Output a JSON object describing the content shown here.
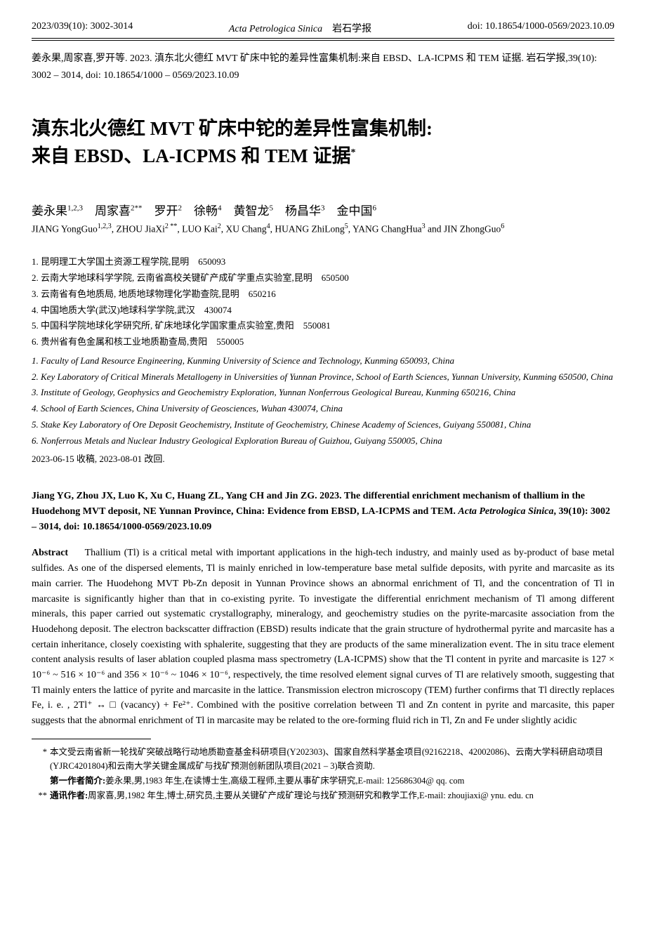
{
  "header": {
    "left": "2023/039(10): 3002-3014",
    "journal_en": "Acta Petrologica Sinica",
    "journal_cn": "岩石学报",
    "doi": "doi: 10.18654/1000-0569/2023.10.09"
  },
  "citation_cn": "姜永果,周家喜,罗开等. 2023. 滇东北火德红 MVT 矿床中铊的差异性富集机制:来自 EBSD、LA-ICPMS 和 TEM 证据. 岩石学报,39(10): 3002 – 3014, doi: 10.18654/1000 – 0569/2023.10.09",
  "title_cn_line1": "滇东北火德红 MVT 矿床中铊的差异性富集机制:",
  "title_cn_line2": "来自 EBSD、LA-ICPMS 和 TEM 证据",
  "title_sup": "*",
  "authors_cn": [
    {
      "name": "姜永果",
      "sup": "1,2,3"
    },
    {
      "name": "周家喜",
      "sup": "2**"
    },
    {
      "name": "罗开",
      "sup": "2"
    },
    {
      "name": "徐畅",
      "sup": "4"
    },
    {
      "name": "黄智龙",
      "sup": "5"
    },
    {
      "name": "杨昌华",
      "sup": "3"
    },
    {
      "name": "金中国",
      "sup": "6"
    }
  ],
  "authors_en": "JIANG YongGuo<sup class=\"sup\">1,2,3</sup>, ZHOU JiaXi<sup class=\"sup\">2 **</sup>, LUO Kai<sup class=\"sup\">2</sup>, XU Chang<sup class=\"sup\">4</sup>, HUANG ZhiLong<sup class=\"sup\">5</sup>, YANG ChangHua<sup class=\"sup\">3</sup> and JIN ZhongGuo<sup class=\"sup\">6</sup>",
  "affiliations_cn": [
    "1. 昆明理工大学国土资源工程学院,昆明　650093",
    "2. 云南大学地球科学学院, 云南省高校关键矿产成矿学重点实验室,昆明　650500",
    "3. 云南省有色地质局, 地质地球物理化学勘查院,昆明　650216",
    "4. 中国地质大学(武汉)地球科学学院,武汉　430074",
    "5. 中国科学院地球化学研究所, 矿床地球化学国家重点实验室,贵阳　550081",
    "6. 贵州省有色金属和核工业地质勘查局,贵阳　550005"
  ],
  "affiliations_en": [
    "1. Faculty of Land Resource Engineering, Kunming University of Science and Technology, Kunming 650093, China",
    "2. Key Laboratory of Critical Minerals Metallogeny in Universities of Yunnan Province, School of Earth Sciences, Yunnan University, Kunming 650500, China",
    "3. Institute of Geology, Geophysics and Geochemistry Exploration, Yunnan Nonferrous Geological Bureau, Kunming 650216, China",
    "4. School of Earth Sciences, China University of Geosciences, Wuhan 430074, China",
    "5. Stake Key Laboratory of Ore Deposit Geochemistry, Institute of Geochemistry, Chinese Academy of Sciences, Guiyang 550081, China",
    "6. Nonferrous Metals and Nuclear Industry Geological Exploration Bureau of Guizhou, Guiyang 550005, China"
  ],
  "dates": "2023-06-15 收稿, 2023-08-01 改回.",
  "en_citation_text": "Jiang YG, Zhou JX, Luo K, Xu C, Huang ZL, Yang CH and Jin ZG. 2023. The differential enrichment mechanism of thallium in the Huodehong MVT deposit, NE Yunnan Province, China: Evidence from EBSD, LA-ICPMS and TEM.",
  "en_citation_journal": "Acta Petrologica Sinica",
  "en_citation_tail": ", 39(10): 3002 – 3014, doi: 10.18654/1000-0569/2023.10.09",
  "abstract_label": "Abstract",
  "abstract_text": "Thallium (Tl) is a critical metal with important applications in the high-tech industry, and mainly used as by-product of base metal sulfides. As one of the dispersed elements, Tl is mainly enriched in low-temperature base metal sulfide deposits, with pyrite and marcasite as its main carrier. The Huodehong MVT Pb-Zn deposit in Yunnan Province shows an abnormal enrichment of Tl, and the concentration of Tl in marcasite is significantly higher than that in co-existing pyrite. To investigate the differential enrichment mechanism of Tl among different minerals, this paper carried out systematic crystallography, mineralogy, and geochemistry studies on the pyrite-marcasite association from the Huodehong deposit. The electron backscatter diffraction (EBSD) results indicate that the grain structure of hydrothermal pyrite and marcasite has a certain inheritance, closely coexisting with sphalerite, suggesting that they are products of the same mineralization event. The in situ trace element content analysis results of laser ablation coupled plasma mass spectrometry (LA-ICPMS) show that the Tl content in pyrite and marcasite is 127 × 10⁻⁶ ~ 516 × 10⁻⁶ and 356 × 10⁻⁶ ~ 1046 × 10⁻⁶, respectively, the time resolved element signal curves of Tl are relatively smooth, suggesting that Tl mainly enters the lattice of pyrite and marcasite in the lattice. Transmission electron microscopy (TEM) further confirms that Tl directly replaces Fe, i. e. , 2Tl⁺ ↔ □ (vacancy) + Fe²⁺. Combined with the positive correlation between Tl and Zn content in pyrite and marcasite, this paper suggests that the abnormal enrichment of Tl in marcasite may be related to the ore-forming fluid rich in Tl, Zn and Fe under slightly acidic",
  "footnotes": {
    "f1_marker": "*",
    "f1_text": "本文受云南省新一轮找矿突破战略行动地质勘查基金科研项目(Y202303)、国家自然科学基金项目(92162218、42002086)、云南大学科研启动项目(YJRC4201804)和云南大学关键金属成矿与找矿预测创新团队项目(2021 – 3)联合资助.",
    "f2_label": "第一作者简介:",
    "f2_text": "姜永果,男,1983 年生,在读博士生,高级工程师,主要从事矿床学研究,E-mail: 125686304@ qq. com",
    "f3_marker": "**",
    "f3_label": "通讯作者:",
    "f3_text": "周家喜,男,1982 年生,博士,研究员,主要从关键矿产成矿理论与找矿预测研究和教学工作,E-mail: zhoujiaxi@ ynu. edu. cn"
  }
}
